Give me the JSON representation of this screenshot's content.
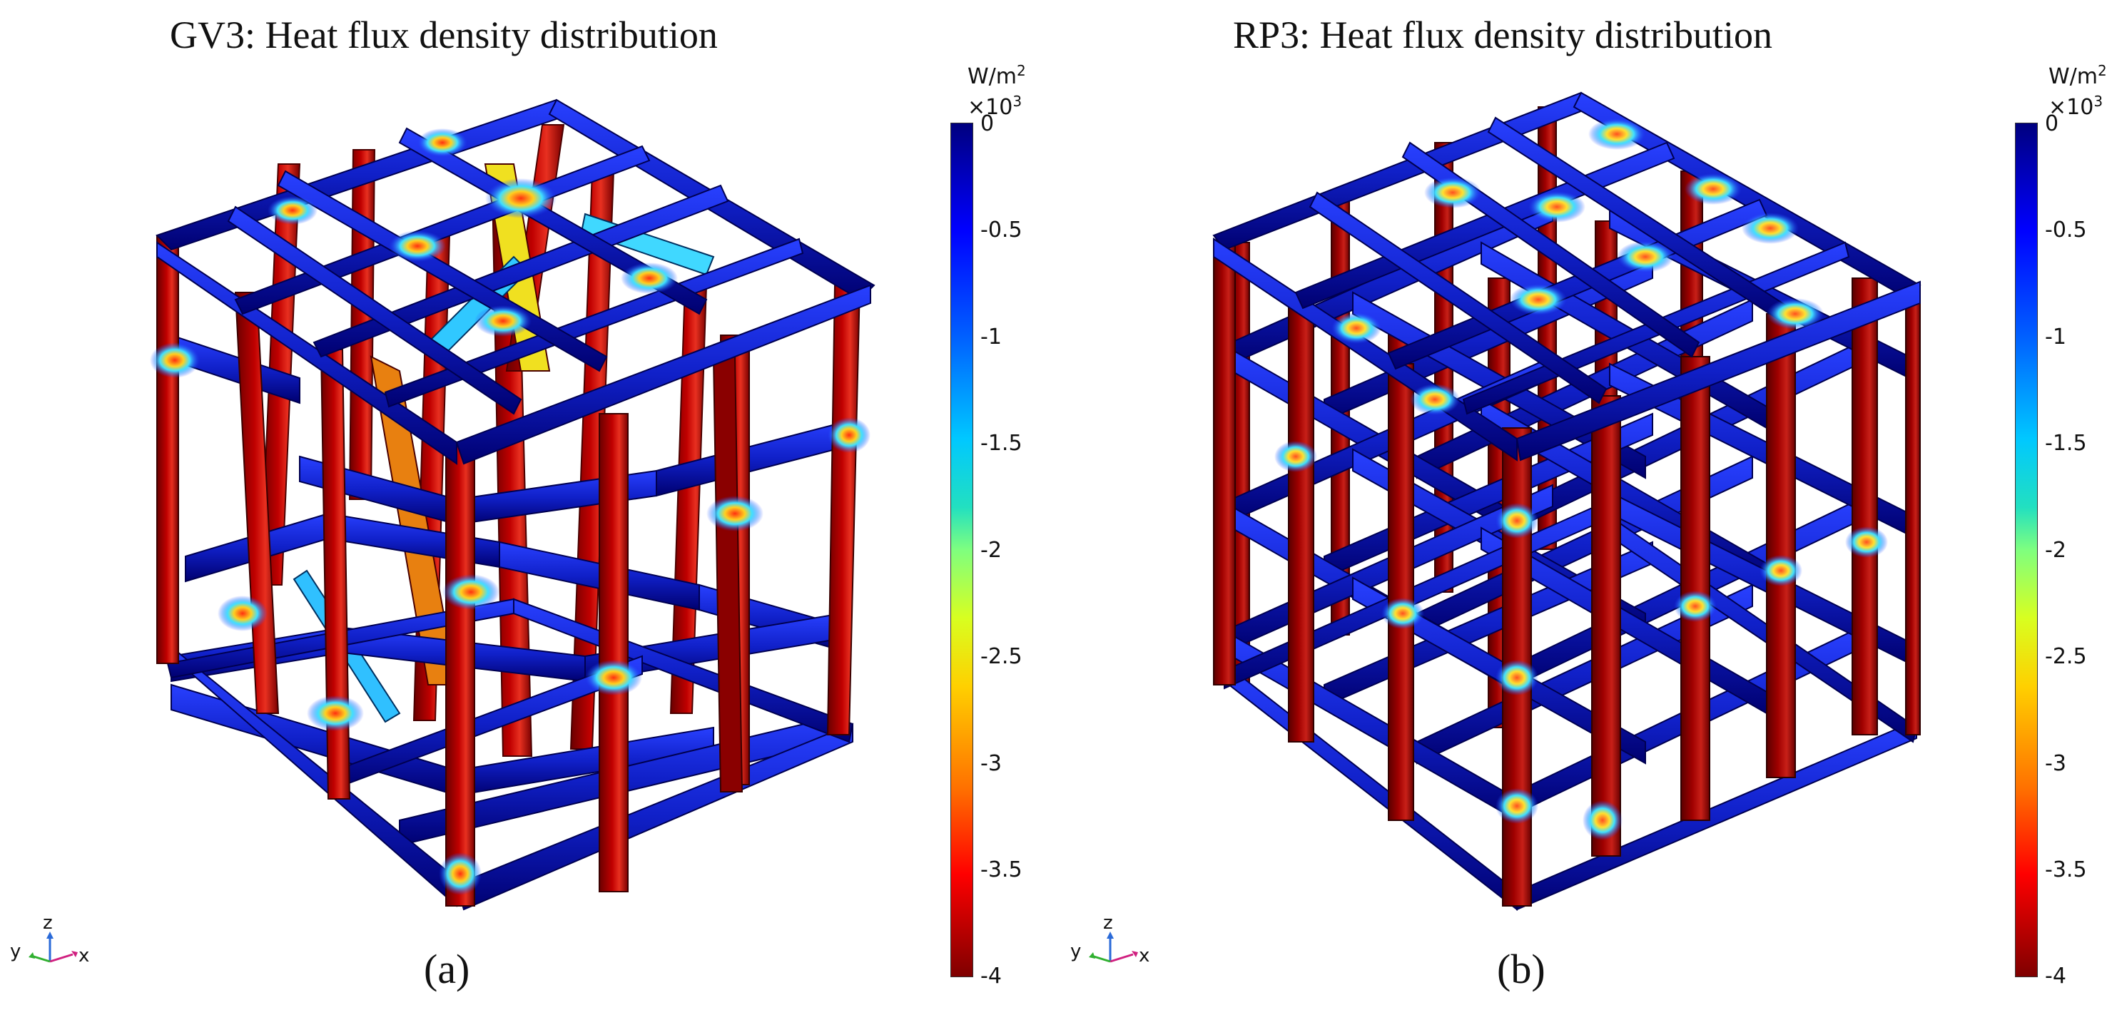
{
  "panel_a": {
    "title": "GV3: Heat flux density distribution",
    "caption": "(a)",
    "colorbar": {
      "unit_main": "W/m",
      "unit_sup": "2",
      "scale_main": "×10",
      "scale_sup": "3",
      "ticks": [
        "0",
        "-0.5",
        "-1",
        "-1.5",
        "-2",
        "-2.5",
        "-3",
        "-3.5",
        "-4"
      ]
    },
    "axes": {
      "y": "y",
      "z": "z",
      "x": "x"
    }
  },
  "panel_b": {
    "title": "RP3: Heat flux density distribution",
    "caption": "(b)",
    "colorbar": {
      "unit_main": "W/m",
      "unit_sup": "2",
      "scale_main": "×10",
      "scale_sup": "3",
      "ticks": [
        "0",
        "-0.5",
        "-1",
        "-1.5",
        "-2",
        "-2.5",
        "-3",
        "-3.5",
        "-4"
      ]
    },
    "axes": {
      "y": "y",
      "z": "z",
      "x": "x"
    }
  },
  "colors": {
    "strut_blue": "#1020c0",
    "strut_dark_blue": "#00008f",
    "strut_red": "#b00000",
    "strut_dark_red": "#7f0000",
    "hot_spot": "#ff4020",
    "edge": "#000040"
  }
}
